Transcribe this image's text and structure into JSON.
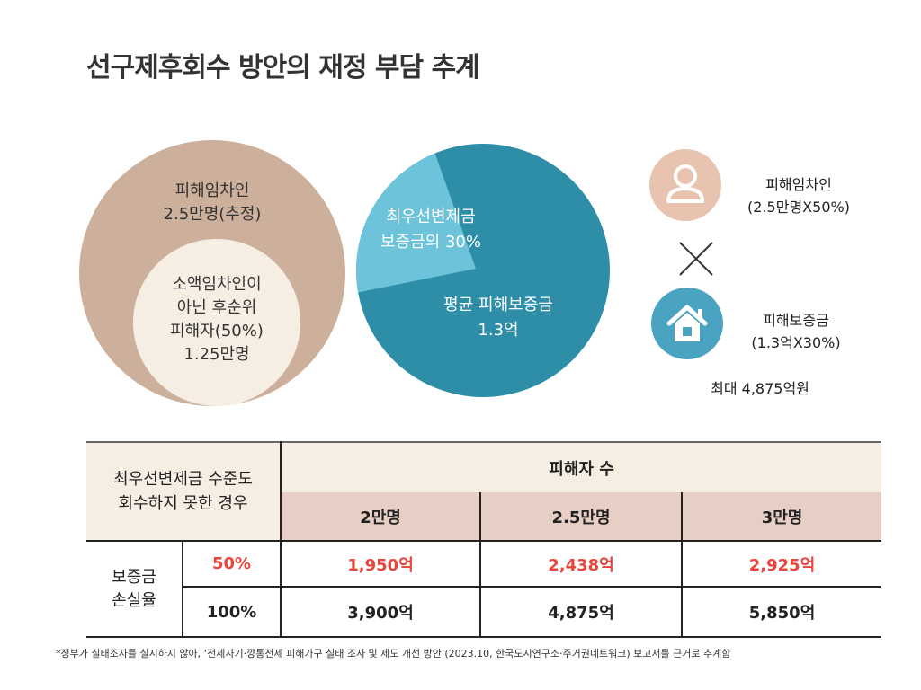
{
  "title": "선구제후회수 방안의 재정 부담 추계",
  "diagram": {
    "victims_circle": {
      "line1": "피해임차인",
      "line2": "2.5만명(추정)"
    },
    "subset_circle": {
      "line1": "소액임차인이",
      "line2": "아닌 후순위",
      "line3": "피해자(50%)",
      "line4": "1.25만명"
    },
    "pie": {
      "slice_small": {
        "line1": "최우선변제금",
        "line2": "보증금의 30%",
        "share": 0.3
      },
      "slice_large": {
        "line1": "평균 피해보증금",
        "line2": "1.3억"
      },
      "colors": {
        "small": "#6cc3da",
        "large": "#2f8ea7"
      }
    },
    "calc": {
      "victims_label": "피해임차인",
      "victims_value": "(2.5만명X50%)",
      "deposit_label": "피해보증금",
      "deposit_value": "(1.3억X30%)",
      "result": "최대 4,875억원"
    }
  },
  "table": {
    "corner_line1": "최우선변제금 수준도",
    "corner_line2": "회수하지 못한 경우",
    "group_header": "피해자 수",
    "columns": [
      "2만명",
      "2.5만명",
      "3만명"
    ],
    "row_group_line1": "보증금",
    "row_group_line2": "손실율",
    "rows": [
      {
        "rate": "50%",
        "values": [
          "1,950억",
          "2,438억",
          "2,925억"
        ]
      },
      {
        "rate": "100%",
        "values": [
          "3,900억",
          "4,875억",
          "5,850억"
        ]
      }
    ]
  },
  "footnote": "*정부가 실태조사를 실시하지 않아, ‘전세사기·깡통전세 피해가구 실태 조사 및 제도 개선 방안’(2023.10, 한국도시연구소·주거권네트워크) 보고서를 근거로 추계함",
  "colors": {
    "accent_red": "#e8453c",
    "header_pink": "#e8cfc6",
    "cream": "#f6eee2",
    "tan": "#cdb09c"
  }
}
